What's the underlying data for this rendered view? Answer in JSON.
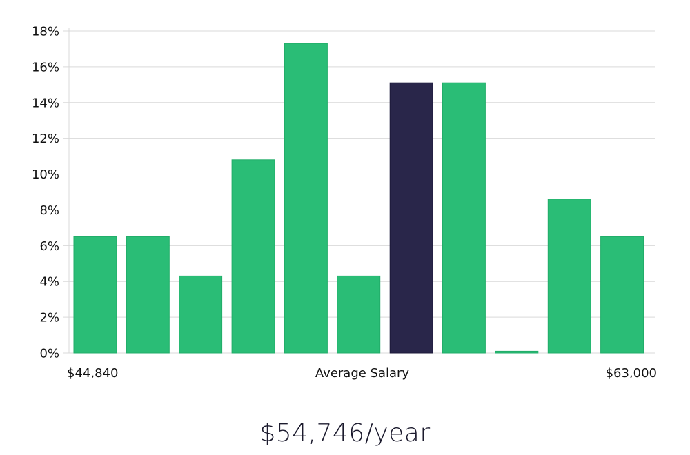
{
  "chart_data": {
    "type": "bar",
    "title": "",
    "xlabel": "Average Salary",
    "ylabel": "",
    "x_min_label": "$44,840",
    "x_max_label": "$63,000",
    "ylim": [
      0,
      18
    ],
    "y_ticks": [
      0,
      2,
      4,
      6,
      8,
      10,
      12,
      14,
      16,
      18
    ],
    "y_tick_suffix": "%",
    "grid": true,
    "values": [
      6.5,
      6.5,
      4.3,
      10.8,
      17.3,
      4.3,
      15.1,
      15.1,
      0.1,
      8.6,
      6.5
    ],
    "highlight_index": 6,
    "colors": {
      "bar": "#2abd76",
      "highlight": "#29264a",
      "grid": "#d9d9d9"
    }
  },
  "summary": {
    "salary_label": "$54,746/year"
  }
}
